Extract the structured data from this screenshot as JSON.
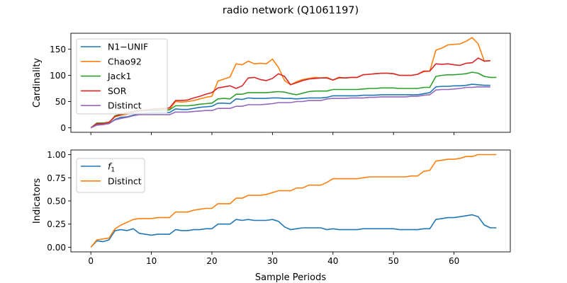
{
  "figure_title": "radio network (Q1061197)",
  "xlabel": "Sample Periods",
  "chart_data": [
    {
      "type": "line",
      "ylabel": "Cardinality",
      "xlim": [
        -3.3,
        69.3
      ],
      "ylim": [
        -8.6,
        180.2
      ],
      "xticks": [
        0,
        10,
        20,
        30,
        40,
        50,
        60
      ],
      "yticks": [
        0,
        50,
        100,
        150
      ],
      "show_xtick_labels": false,
      "grid": false,
      "legend_position": "upper-left",
      "series": [
        {
          "name": "N1−UNIF",
          "color": "#1f77b4",
          "values": [
            0,
            6,
            7,
            8,
            16,
            20,
            21,
            24,
            27,
            28,
            29,
            29,
            29,
            29,
            36,
            35,
            35,
            37,
            39,
            40,
            41,
            47,
            47,
            46,
            55,
            54,
            57,
            56,
            56,
            56,
            57,
            57,
            56,
            56,
            55,
            56,
            57,
            57,
            57,
            58,
            61,
            61,
            61,
            61,
            61,
            62,
            62,
            62,
            63,
            63,
            63,
            63,
            63,
            63,
            63,
            65,
            67,
            78,
            79,
            79,
            80,
            80,
            81,
            83,
            82,
            81,
            81
          ]
        },
        {
          "name": "Chao92",
          "color": "#ff7f0e",
          "values": [
            0,
            9,
            9,
            11,
            21,
            24,
            26,
            29,
            32,
            33,
            34,
            34,
            35,
            35,
            50,
            49,
            50,
            52,
            55,
            58,
            60,
            89,
            93,
            97,
            122,
            120,
            127,
            122,
            123,
            122,
            131,
            115,
            90,
            82,
            88,
            92,
            94,
            96,
            95,
            96,
            91,
            95,
            95,
            96,
            96,
            101,
            102,
            103,
            104,
            104,
            103,
            100,
            100,
            100,
            102,
            107,
            108,
            148,
            152,
            158,
            159,
            160,
            165,
            172,
            160,
            127,
            128
          ]
        },
        {
          "name": "Jack1",
          "color": "#2ca02c",
          "values": [
            0,
            9,
            9,
            10,
            23,
            26,
            29,
            30,
            32,
            33,
            33,
            33,
            34,
            34,
            42,
            42,
            42,
            43,
            45,
            46,
            47,
            55,
            56,
            55,
            64,
            64,
            67,
            67,
            67,
            67,
            68,
            69,
            68,
            65,
            63,
            66,
            69,
            70,
            70,
            70,
            73,
            73,
            73,
            73,
            73,
            74,
            75,
            75,
            76,
            76,
            76,
            75,
            75,
            75,
            75,
            77,
            77,
            98,
            100,
            101,
            101,
            102,
            103,
            106,
            104,
            98,
            96,
            96
          ]
        },
        {
          "name": "SOR",
          "color": "#d62728",
          "values": [
            0,
            8,
            8,
            10,
            22,
            25,
            29,
            31,
            33,
            34,
            35,
            36,
            37,
            38,
            52,
            52,
            53,
            57,
            60,
            64,
            67,
            76,
            78,
            80,
            75,
            80,
            95,
            96,
            92,
            90,
            94,
            103,
            98,
            82,
            86,
            90,
            93,
            94,
            95,
            95,
            91,
            96,
            95,
            96,
            96,
            101,
            102,
            103,
            104,
            104,
            103,
            100,
            100,
            100,
            102,
            108,
            108,
            122,
            121,
            122,
            120,
            119,
            123,
            124,
            133,
            127,
            128
          ]
        },
        {
          "name": "Distinct",
          "color": "#9467bd",
          "values": [
            0,
            5,
            6,
            8,
            15,
            18,
            20,
            23,
            25,
            25,
            25,
            25,
            25,
            25,
            30,
            30,
            30,
            31,
            32,
            33,
            33,
            37,
            37,
            37,
            41,
            41,
            44,
            44,
            44,
            45,
            46,
            48,
            48,
            48,
            50,
            50,
            52,
            52,
            52,
            55,
            56,
            56,
            56,
            57,
            57,
            57,
            58,
            58,
            59,
            59,
            59,
            59,
            59,
            60,
            60,
            62,
            63,
            72,
            73,
            73,
            74,
            75,
            77,
            77,
            78,
            78,
            78
          ]
        }
      ]
    },
    {
      "type": "line",
      "ylabel": "Indicators",
      "xlabel": "Sample Periods",
      "xlim": [
        -3.3,
        69.3
      ],
      "ylim": [
        -0.05,
        1.05
      ],
      "xticks": [
        0,
        10,
        20,
        30,
        40,
        50,
        60
      ],
      "yticks": [
        0.0,
        0.25,
        0.5,
        0.75,
        1.0
      ],
      "ytick_labels": [
        "0.00",
        "0.25",
        "0.50",
        "0.75",
        "1.00"
      ],
      "show_xtick_labels": true,
      "grid": false,
      "legend_position": "upper-left",
      "series": [
        {
          "name": "f1",
          "label_text": "f",
          "label_sub": "1",
          "color": "#1f77b4",
          "values": [
            0.0,
            0.07,
            0.06,
            0.08,
            0.18,
            0.19,
            0.18,
            0.2,
            0.15,
            0.14,
            0.13,
            0.14,
            0.14,
            0.14,
            0.19,
            0.18,
            0.18,
            0.19,
            0.19,
            0.2,
            0.2,
            0.25,
            0.25,
            0.25,
            0.3,
            0.29,
            0.3,
            0.29,
            0.29,
            0.29,
            0.3,
            0.28,
            0.22,
            0.19,
            0.2,
            0.21,
            0.21,
            0.21,
            0.21,
            0.19,
            0.2,
            0.19,
            0.19,
            0.19,
            0.19,
            0.2,
            0.2,
            0.2,
            0.2,
            0.2,
            0.2,
            0.19,
            0.19,
            0.19,
            0.19,
            0.2,
            0.2,
            0.3,
            0.31,
            0.32,
            0.32,
            0.33,
            0.34,
            0.35,
            0.33,
            0.24,
            0.21,
            0.21
          ]
        },
        {
          "name": "Distinct",
          "label_text": "Distinct",
          "label_sub": "",
          "color": "#ff7f0e",
          "values": [
            0.0,
            0.08,
            0.09,
            0.1,
            0.2,
            0.24,
            0.27,
            0.3,
            0.31,
            0.31,
            0.31,
            0.32,
            0.32,
            0.32,
            0.38,
            0.38,
            0.38,
            0.4,
            0.41,
            0.42,
            0.42,
            0.47,
            0.47,
            0.47,
            0.53,
            0.53,
            0.56,
            0.56,
            0.56,
            0.57,
            0.59,
            0.61,
            0.61,
            0.61,
            0.64,
            0.64,
            0.67,
            0.67,
            0.67,
            0.7,
            0.74,
            0.74,
            0.74,
            0.74,
            0.74,
            0.75,
            0.76,
            0.76,
            0.76,
            0.76,
            0.76,
            0.76,
            0.76,
            0.77,
            0.77,
            0.82,
            0.83,
            0.93,
            0.94,
            0.95,
            0.95,
            0.96,
            0.98,
            0.98,
            1.0,
            1.0,
            1.0,
            1.0
          ]
        }
      ]
    }
  ]
}
